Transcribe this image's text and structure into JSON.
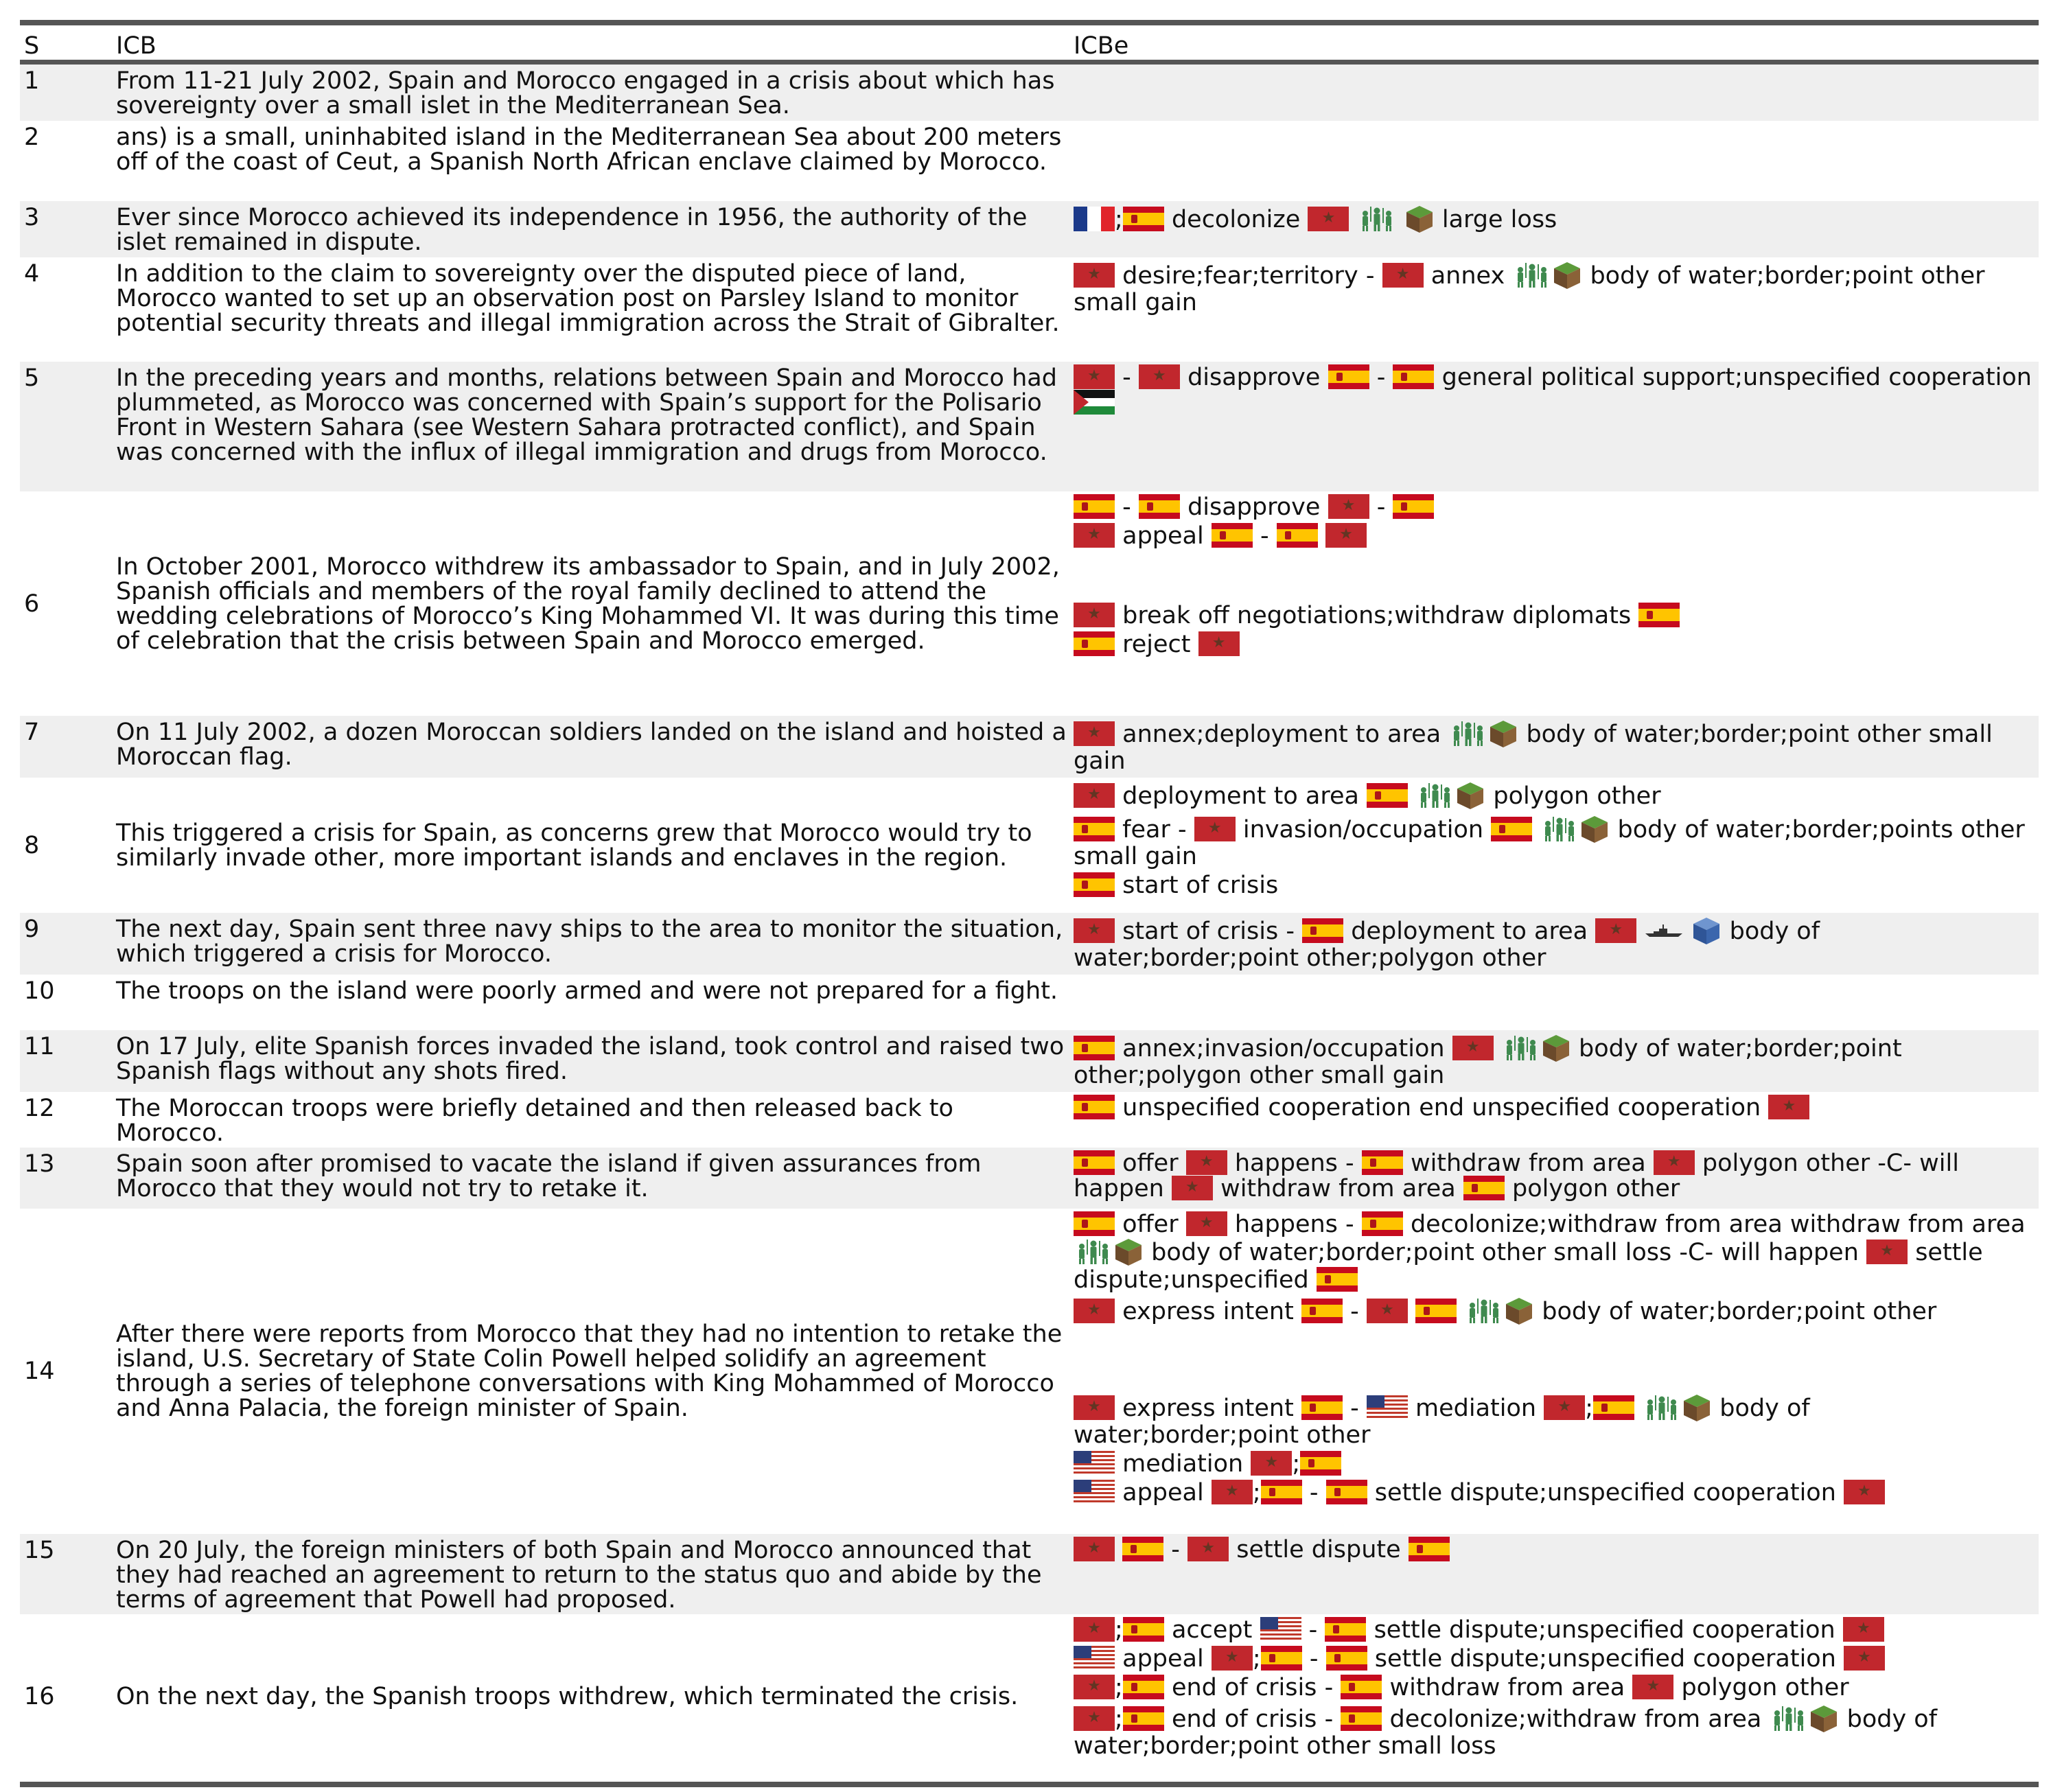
{
  "header": {
    "s": "S",
    "icb": "ICB",
    "icbe": "ICBe"
  },
  "sep": {
    "semi": ";",
    "dash": "-"
  },
  "rows": [
    {
      "s": "1",
      "icb": "From 11-21 July 2002, Spain and Morocco engaged in a crisis about which has sovereignty over a small islet in the Mediterranean Sea."
    },
    {
      "s": "2",
      "icb": "ans) is a small, uninhabited island in the Mediterranean Sea about 200 meters off of the coast of Ceut, a Spanish North African enclave claimed by Morocco."
    },
    {
      "s": "3",
      "icb": "Ever since Morocco achieved its independence in 1956, the authority of the islet remained in dispute."
    },
    {
      "s": "4",
      "icb": "In addition to the claim to sovereignty over the disputed piece of land, Morocco wanted to set up an observation post on Parsley Island to monitor potential security threats and illegal immigration across the Strait of Gibralter."
    },
    {
      "s": "5",
      "icb": "In the preceding years and months, relations between Spain and Morocco had plummeted, as Morocco was concerned with Spain’s support for the Polisario Front in Western Sahara (see Western Sahara protracted conflict), and Spain was concerned with the influx of illegal immigration and drugs from Morocco."
    },
    {
      "s": "6",
      "icb": "In October 2001, Morocco withdrew its ambassador to Spain, and in July 2002, Spanish officials and members of the royal family declined to attend the wedding celebrations of Morocco’s King Mohammed VI. It was during this time of celebration that the crisis between Spain and Morocco emerged."
    },
    {
      "s": "7",
      "icb": "On 11 July 2002, a dozen Moroccan soldiers landed on the island and hoisted a Moroccan flag."
    },
    {
      "s": "8",
      "icb": "This triggered a crisis for Spain, as concerns grew that Morocco would try to similarly invade other, more important islands and enclaves in the region."
    },
    {
      "s": "9",
      "icb": "The next day, Spain sent three navy ships to the area to monitor the situation, which triggered a crisis for Morocco."
    },
    {
      "s": "10",
      "icb": "The troops on the island were poorly armed and were not prepared for a fight."
    },
    {
      "s": "11",
      "icb": "On 17 July, elite Spanish forces invaded the island, took control and raised two Spanish flags without any shots fired."
    },
    {
      "s": "12",
      "icb": "The Moroccan troops were briefly detained and then released back to Morocco."
    },
    {
      "s": "13",
      "icb": "Spain soon after promised to vacate the island if given assurances from Morocco that they would not try to retake it."
    },
    {
      "s": "14",
      "icb": "After there were reports from Morocco that they had no intention to retake the island, U.S. Secretary of State Colin Powell helped solidify an agreement through a series of telephone conversations with King Mohammed of Morocco and Anna Palacia, the foreign minister of Spain."
    },
    {
      "s": "15",
      "icb": "On 20 July, the foreign ministers of both Spain and Morocco announced that they had reached an agreement to return to the status quo and abide by the terms of agreement that Powell had proposed."
    },
    {
      "s": "16",
      "icb": "On the next day, the Spanish troops withdrew, which terminated the crisis."
    }
  ],
  "ev": {
    "r3": {
      "a": "decolonize",
      "b": "large loss"
    },
    "r4": {
      "a": "desire;fear;territory",
      "b": "annex",
      "c": "body of water;border;point other small gain"
    },
    "r5": {
      "a": "disapprove",
      "b": "general political support;unspecified cooperation"
    },
    "r6a": {
      "a": "disapprove"
    },
    "r6b": {
      "a": "appeal"
    },
    "r6c": {
      "a": "break off negotiations;withdraw diplomats"
    },
    "r6d": {
      "a": "reject"
    },
    "r7": {
      "a": "annex;deployment to area",
      "b": "body of water;border;point other small gain"
    },
    "r8a": {
      "a": "deployment to area",
      "b": "polygon other"
    },
    "r8b": {
      "a": "fear",
      "b": "invasion/occupation",
      "c": "body of water;border;points other small gain"
    },
    "r8c": {
      "a": "start of crisis"
    },
    "r9": {
      "a": "start of crisis",
      "b": "deployment to area",
      "c": "body of water;border;point other;polygon other"
    },
    "r11": {
      "a": "annex;invasion/occupation",
      "b": "body of water;border;point other;polygon other small gain"
    },
    "r12": {
      "a": "unspecified cooperation end unspecified cooperation"
    },
    "r13": {
      "a": "offer",
      "b": "happens",
      "c": "withdraw from area",
      "d": "polygon other -C- will happen",
      "e": "withdraw from area",
      "f": "polygon other"
    },
    "r14a": {
      "a": "offer",
      "b": "happens",
      "c": "decolonize;withdraw from area withdraw from area",
      "d": "body of water;border;point other small loss -C- will happen",
      "e": "settle dispute;unspecified"
    },
    "r14b": {
      "a": "express intent",
      "b": "body of water;border;point other"
    },
    "r14c": {
      "a": "express intent",
      "b": "mediation",
      "c": "body of water;border;point other"
    },
    "r14d": {
      "a": "mediation"
    },
    "r14e": {
      "a": "appeal",
      "b": "settle dispute;unspecified cooperation"
    },
    "r15": {
      "a": "settle dispute"
    },
    "r16a": {
      "a": "accept",
      "b": "settle dispute;unspecified cooperation"
    },
    "r16b": {
      "a": "appeal",
      "b": "settle dispute;unspecified cooperation"
    },
    "r16c": {
      "a": "end of crisis",
      "b": "withdraw from area",
      "c": "polygon other"
    },
    "r16d": {
      "a": "end of crisis",
      "b": "decolonize;withdraw from area",
      "c": "body of water;border;point other small loss"
    }
  },
  "icons": {
    "spain": "spain-flag-icon",
    "morocco": "morocco-flag-icon",
    "france": "france-flag-icon",
    "usa": "usa-flag-icon",
    "western_sahara": "western-sahara-flag-icon",
    "troops": "soldiers-icon",
    "land": "land-cube-icon",
    "sea": "sea-cube-icon",
    "navy": "navy-ship-icon"
  },
  "colors": {
    "rule": "#555555",
    "shade": "#efefef",
    "spain_red": "#c60b1e",
    "spain_yellow": "#ffc400",
    "morocco_red": "#c1272d"
  }
}
